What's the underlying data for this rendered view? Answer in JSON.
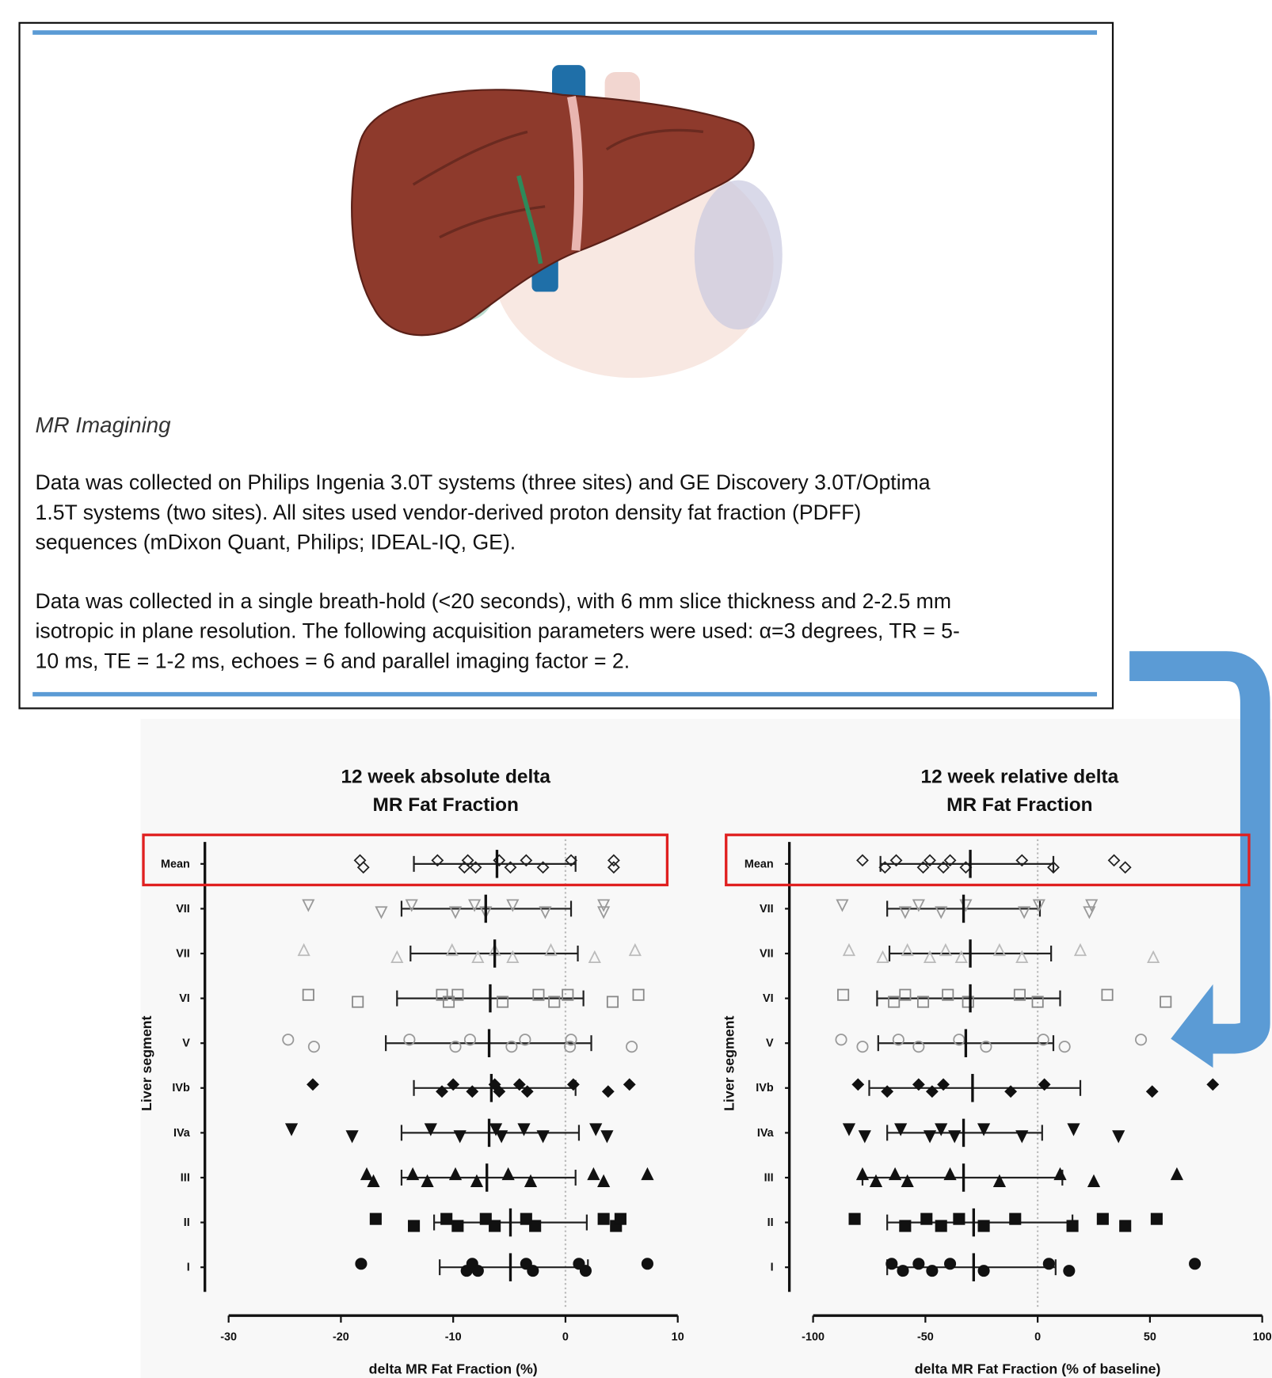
{
  "document": {
    "heading": "MR Imagining",
    "paragraphs": [
      [
        "Data was collected on Philips Ingenia 3.0T systems (three sites) and GE Discovery 3.0T/Optima",
        "1.5T systems (two sites). All sites used vendor-derived proton density fat fraction (PDFF)",
        "sequences (mDixon Quant, Philips; IDEAL-IQ, GE)."
      ],
      [
        "Data was collected in a single breath-hold (<20 seconds), with 6 mm slice thickness and 2-2.5 mm",
        "isotropic in plane resolution.  The following acquisition parameters were used: α=3 degrees, TR = 5-",
        "10 ms, TE = 1-2 ms, echoes = 6 and parallel imaging factor = 2."
      ]
    ]
  },
  "chart_data": [
    {
      "type": "strip",
      "title": [
        "12 week absolute delta",
        "MR Fat Fraction"
      ],
      "y_label": "Liver segment",
      "x_label": "delta MR Fat Fraction (%)",
      "categories": [
        "Mean",
        "VII",
        "VII",
        "VI",
        "V",
        "IVb",
        "IVa",
        "III",
        "II",
        "I"
      ],
      "highlight": "Mean",
      "highlight_color": "#e02020",
      "markers": [
        {
          "shape": "diamond",
          "fill": "none",
          "stroke": "#222"
        },
        {
          "shape": "triangle-down",
          "fill": "none",
          "stroke": "#999"
        },
        {
          "shape": "triangle-up",
          "fill": "none",
          "stroke": "#bbb"
        },
        {
          "shape": "square",
          "fill": "none",
          "stroke": "#888"
        },
        {
          "shape": "circle",
          "fill": "none",
          "stroke": "#999"
        },
        {
          "shape": "diamond",
          "fill": "#111",
          "stroke": "#111"
        },
        {
          "shape": "triangle-down",
          "fill": "#111",
          "stroke": "#111"
        },
        {
          "shape": "triangle-up",
          "fill": "#111",
          "stroke": "#111"
        },
        {
          "shape": "square",
          "fill": "#111",
          "stroke": "#111"
        },
        {
          "shape": "circle",
          "fill": "#111",
          "stroke": "#111"
        }
      ],
      "points": [
        [
          -18.3,
          -18,
          -11.4,
          -9,
          -8.7,
          -8,
          -5.9,
          -4.9,
          -3.5,
          -2,
          0.5,
          4.3,
          4.3
        ],
        [
          -22.9,
          -16.4,
          -13.7,
          -9.8,
          -8.1,
          -7.1,
          -4.7,
          -1.8,
          3.4,
          3.4
        ],
        [
          -23.3,
          -15,
          -10.1,
          -7.8,
          -6.3,
          -4.7,
          -1.3,
          2.6,
          6.2
        ],
        [
          -22.9,
          -18.5,
          -11,
          -10.4,
          -9.6,
          -5.6,
          -2.4,
          -1,
          0.2,
          4.2,
          6.5
        ],
        [
          -24.7,
          -22.4,
          -13.9,
          -9.8,
          -8.5,
          -4.8,
          -3.6,
          0.4,
          0.5,
          5.9
        ],
        [
          -22.5,
          -11,
          -10,
          -8.3,
          -6.3,
          -5.9,
          -4.1,
          -3.4,
          0.7,
          3.8,
          5.7
        ],
        [
          -24.4,
          -19,
          -12,
          -9.4,
          -6.2,
          -5.7,
          -3.7,
          -2,
          2.7,
          3.7
        ],
        [
          -17.7,
          -17.1,
          -13.6,
          -12.3,
          -9.8,
          -7.9,
          -5.1,
          -3.1,
          2.5,
          3.4,
          7.3
        ],
        [
          -16.9,
          -13.5,
          -10.6,
          -9.6,
          -7.1,
          -6.3,
          -3.5,
          -2.7,
          3.4,
          4.5,
          4.9
        ],
        [
          -18.2,
          -8.8,
          -8.3,
          -7.8,
          -3.5,
          -2.9,
          1.2,
          1.8,
          7.3
        ]
      ],
      "means": [
        -6.1,
        -7.1,
        -6.3,
        -6.7,
        -6.8,
        -6.6,
        -6.8,
        -7,
        -4.9,
        -4.9
      ],
      "whisker_low": [
        -13.5,
        -14.6,
        -13.8,
        -15,
        -16,
        -13.5,
        -14.6,
        -14.6,
        -11.7,
        -11.2
      ],
      "whisker_high": [
        0.9,
        0.5,
        1.1,
        1.6,
        2.3,
        0.9,
        1.2,
        0.9,
        1.9,
        2
      ],
      "xlim": [
        -30,
        10
      ],
      "xticks": [
        -30,
        -20,
        -10,
        0,
        10
      ]
    },
    {
      "type": "strip",
      "title": [
        "12 week relative delta",
        "MR Fat Fraction"
      ],
      "y_label": "Liver segment",
      "x_label": "delta MR Fat Fraction (% of baseline)",
      "categories": [
        "Mean",
        "VII",
        "VII",
        "VI",
        "V",
        "IVb",
        "IVa",
        "III",
        "II",
        "I"
      ],
      "highlight": "Mean",
      "highlight_color": "#e02020",
      "markers": [
        {
          "shape": "diamond",
          "fill": "none",
          "stroke": "#222"
        },
        {
          "shape": "triangle-down",
          "fill": "none",
          "stroke": "#999"
        },
        {
          "shape": "triangle-up",
          "fill": "none",
          "stroke": "#bbb"
        },
        {
          "shape": "square",
          "fill": "none",
          "stroke": "#888"
        },
        {
          "shape": "circle",
          "fill": "none",
          "stroke": "#999"
        },
        {
          "shape": "diamond",
          "fill": "#111",
          "stroke": "#111"
        },
        {
          "shape": "triangle-down",
          "fill": "#111",
          "stroke": "#111"
        },
        {
          "shape": "triangle-up",
          "fill": "#111",
          "stroke": "#111"
        },
        {
          "shape": "square",
          "fill": "#111",
          "stroke": "#111"
        },
        {
          "shape": "circle",
          "fill": "#111",
          "stroke": "#111"
        }
      ],
      "points": [
        [
          -78,
          -68,
          -63,
          -51,
          -48,
          -42,
          -39,
          -32,
          -7,
          7,
          34,
          39
        ],
        [
          -87,
          -59,
          -53,
          -43,
          -32,
          -6,
          0.6,
          23,
          24
        ],
        [
          -84,
          -69,
          -58,
          -48,
          -41,
          -34,
          -17,
          -7,
          19,
          51.5
        ],
        [
          -86.6,
          -64,
          -59,
          -51,
          -40,
          -31,
          -8,
          0,
          31,
          57
        ],
        [
          -87.5,
          -78,
          -62,
          -53,
          -35,
          -23,
          2.5,
          12,
          46
        ],
        [
          -80,
          -67,
          -53,
          -47,
          -42,
          -12,
          3,
          51,
          78
        ],
        [
          -84,
          -77,
          -61,
          -48,
          -43,
          -37,
          -24,
          -7,
          16,
          36
        ],
        [
          -78,
          -72,
          -63.5,
          -58,
          -39,
          -17,
          10,
          25,
          62
        ],
        [
          -81.5,
          -59,
          -49.5,
          -43,
          -35,
          -24,
          -10,
          15.5,
          29,
          39,
          53
        ],
        [
          -65,
          -60,
          -53,
          -47,
          -39,
          -24,
          5,
          14,
          70
        ]
      ],
      "means": [
        -30,
        -33,
        -30,
        -30,
        -32,
        -29,
        -33,
        -33,
        -28.5,
        -28.5
      ],
      "whisker_low": [
        -70,
        -67,
        -66,
        -71.5,
        -71,
        -75,
        -67,
        -78,
        -67,
        -67
      ],
      "whisker_high": [
        7,
        1,
        6,
        10,
        7,
        19,
        2,
        11,
        15.5,
        8
      ],
      "xlim": [
        -100,
        100
      ],
      "xticks": [
        -100,
        -50,
        0,
        50,
        100
      ]
    }
  ]
}
